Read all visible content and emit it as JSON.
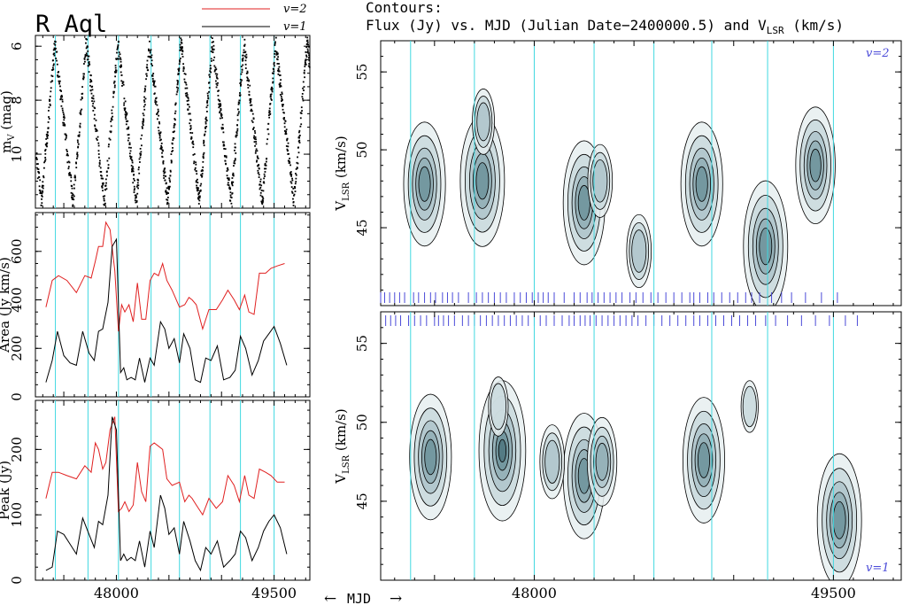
{
  "figure": {
    "star_title": "R Aql",
    "contour_title_line1": "Contours:",
    "contour_title_line2": "Flux (Jy) vs. MJD (Julian  Date−2400000.5) and V",
    "contour_title_sub": "LSR",
    "contour_title_unit": " (km/s)",
    "mjd_axis_label": "MJD",
    "arrow_left": "←",
    "arrow_right": "→"
  },
  "colors": {
    "v2": "#e02020",
    "v1": "#000000",
    "cyan": "#40d8e0",
    "tick_marks": "#4a4ad8",
    "contour_fill": "#5a7f88"
  },
  "chart_data": [
    {
      "type": "scatter",
      "id": "lightcurve",
      "ylabel": "m",
      "ylabel_sub": "V",
      "ylabel_unit": " (mag)",
      "xlim": [
        47230,
        49840
      ],
      "ylim": [
        12.0,
        5.6
      ],
      "xticks": [
        48000,
        49500
      ],
      "yticks": [
        6,
        8,
        10
      ],
      "legend": [
        {
          "name": "v=2",
          "color": "#e02020"
        },
        {
          "name": "v=1",
          "color": "#000000"
        }
      ],
      "maxima_mjd": [
        47415,
        47715,
        48015,
        48315,
        48615,
        48915,
        49215,
        49515,
        49815
      ],
      "amplitude_mag": [
        5.9,
        11.8
      ]
    },
    {
      "type": "line",
      "id": "area",
      "ylabel": "Area (Jy km/s)",
      "xlim": [
        47230,
        49840
      ],
      "ylim": [
        0,
        760
      ],
      "yticks": [
        0,
        200,
        400,
        600
      ],
      "series": [
        {
          "name": "v=2",
          "color": "#e02020",
          "x": [
            47330,
            47390,
            47450,
            47530,
            47620,
            47700,
            47760,
            47800,
            47830,
            47870,
            47900,
            47940,
            47985,
            48020,
            48050,
            48080,
            48120,
            48160,
            48200,
            48240,
            48280,
            48320,
            48360,
            48400,
            48440,
            48480,
            48530,
            48600,
            48650,
            48690,
            48720,
            48760,
            48820,
            48880,
            48950,
            49010,
            49060,
            49120,
            49170,
            49220,
            49260,
            49310,
            49360,
            49420,
            49470,
            49530,
            49600
          ],
          "y": [
            370,
            480,
            500,
            480,
            430,
            500,
            490,
            560,
            620,
            620,
            720,
            690,
            520,
            270,
            380,
            350,
            380,
            310,
            470,
            320,
            320,
            480,
            510,
            500,
            550,
            480,
            440,
            370,
            380,
            410,
            400,
            380,
            280,
            360,
            360,
            400,
            440,
            400,
            360,
            420,
            350,
            340,
            510,
            510,
            530,
            540,
            550
          ]
        },
        {
          "name": "v=1",
          "color": "#000000",
          "x": [
            47330,
            47390,
            47440,
            47500,
            47560,
            47620,
            47680,
            47740,
            47790,
            47830,
            47870,
            47920,
            47960,
            48000,
            48040,
            48070,
            48100,
            48140,
            48180,
            48220,
            48270,
            48320,
            48360,
            48420,
            48460,
            48500,
            48550,
            48600,
            48640,
            48700,
            48750,
            48800,
            48850,
            48900,
            48960,
            49020,
            49080,
            49130,
            49180,
            49230,
            49290,
            49350,
            49400,
            49450,
            49500,
            49560,
            49620
          ],
          "y": [
            60,
            150,
            270,
            170,
            140,
            130,
            270,
            180,
            150,
            270,
            280,
            390,
            620,
            650,
            100,
            120,
            70,
            80,
            70,
            160,
            60,
            160,
            130,
            310,
            280,
            200,
            240,
            140,
            260,
            200,
            70,
            60,
            160,
            150,
            210,
            70,
            80,
            110,
            250,
            200,
            90,
            150,
            230,
            260,
            290,
            220,
            130
          ]
        }
      ]
    },
    {
      "type": "line",
      "id": "peak",
      "ylabel": "Peak (Jy)",
      "xlim": [
        47230,
        49840
      ],
      "ylim": [
        0,
        275
      ],
      "yticks": [
        0,
        100,
        200
      ],
      "series": [
        {
          "name": "v=2",
          "color": "#e02020",
          "x": [
            47330,
            47390,
            47450,
            47530,
            47620,
            47700,
            47760,
            47800,
            47830,
            47870,
            47900,
            47940,
            47985,
            48020,
            48050,
            48080,
            48120,
            48160,
            48200,
            48240,
            48280,
            48320,
            48360,
            48400,
            48440,
            48480,
            48530,
            48600,
            48650,
            48690,
            48720,
            48760,
            48820,
            48880,
            48950,
            49010,
            49060,
            49120,
            49170,
            49220,
            49260,
            49310,
            49360,
            49420,
            49470,
            49530,
            49600
          ],
          "y": [
            125,
            165,
            165,
            160,
            155,
            175,
            165,
            210,
            200,
            170,
            180,
            230,
            250,
            105,
            110,
            120,
            105,
            115,
            180,
            135,
            120,
            205,
            210,
            205,
            200,
            155,
            145,
            150,
            120,
            130,
            125,
            115,
            100,
            125,
            110,
            120,
            160,
            145,
            120,
            160,
            130,
            125,
            170,
            165,
            160,
            150,
            150
          ]
        },
        {
          "name": "v=1",
          "color": "#000000",
          "x": [
            47330,
            47390,
            47440,
            47500,
            47560,
            47620,
            47680,
            47740,
            47790,
            47830,
            47870,
            47920,
            47960,
            48000,
            48040,
            48070,
            48100,
            48140,
            48180,
            48220,
            48270,
            48320,
            48360,
            48420,
            48460,
            48500,
            48550,
            48600,
            48640,
            48700,
            48750,
            48800,
            48850,
            48900,
            48960,
            49020,
            49080,
            49130,
            49180,
            49230,
            49290,
            49350,
            49400,
            49450,
            49500,
            49560,
            49620
          ],
          "y": [
            15,
            20,
            75,
            70,
            55,
            40,
            95,
            70,
            50,
            90,
            85,
            130,
            250,
            230,
            30,
            40,
            30,
            35,
            30,
            60,
            20,
            75,
            50,
            130,
            110,
            70,
            80,
            40,
            90,
            60,
            30,
            15,
            50,
            40,
            60,
            20,
            30,
            40,
            75,
            65,
            30,
            50,
            75,
            90,
            100,
            80,
            40
          ]
        }
      ]
    },
    {
      "type": "contour",
      "id": "contour_v2",
      "label": "v=2",
      "ylabel": "V",
      "ylabel_sub": "LSR",
      "ylabel_unit": " (km/s)",
      "xlim": [
        47230,
        49840
      ],
      "ylim": [
        40,
        57
      ],
      "xticks": [
        48000,
        49500
      ],
      "yticks": [
        45,
        50,
        55
      ],
      "components": [
        {
          "x": 47450,
          "y": 47.8,
          "peak": 0.85
        },
        {
          "x": 47740,
          "y": 48.0,
          "peak": 0.9
        },
        {
          "x": 48250,
          "y": 46.6,
          "peak": 0.85
        },
        {
          "x": 48330,
          "y": 48.0,
          "peak": 0.5
        },
        {
          "x": 48840,
          "y": 47.8,
          "peak": 0.85
        },
        {
          "x": 49160,
          "y": 43.8,
          "peak": 0.9
        },
        {
          "x": 49410,
          "y": 49.0,
          "peak": 0.8
        },
        {
          "x": 47745,
          "y": 51.8,
          "peak": 0.45
        },
        {
          "x": 48525,
          "y": 43.5,
          "peak": 0.5
        }
      ]
    },
    {
      "type": "contour",
      "id": "contour_v1",
      "label": "v=1",
      "ylabel": "V",
      "ylabel_sub": "LSR",
      "ylabel_unit": " (km/s)",
      "xlim": [
        47230,
        49840
      ],
      "ylim": [
        40,
        57
      ],
      "xticks": [
        48000,
        49500
      ],
      "yticks": [
        45,
        50,
        55
      ],
      "components": [
        {
          "x": 47480,
          "y": 47.8,
          "peak": 0.85
        },
        {
          "x": 47840,
          "y": 48.2,
          "peak": 0.95
        },
        {
          "x": 48250,
          "y": 46.6,
          "peak": 0.85
        },
        {
          "x": 48340,
          "y": 47.5,
          "peak": 0.6
        },
        {
          "x": 48850,
          "y": 47.6,
          "peak": 0.85
        },
        {
          "x": 49530,
          "y": 43.8,
          "peak": 0.9
        },
        {
          "x": 48090,
          "y": 47.5,
          "peak": 0.5
        },
        {
          "x": 47820,
          "y": 51.0,
          "peak": 0.4
        },
        {
          "x": 49080,
          "y": 51.0,
          "peak": 0.35
        }
      ]
    }
  ],
  "observation_epochs_v2_mjd": [
    47230,
    47250,
    47275,
    47300,
    47325,
    47350,
    47395,
    47420,
    47450,
    47480,
    47505,
    47540,
    47565,
    47590,
    47620,
    47670,
    47710,
    47740,
    47770,
    47800,
    47830,
    47860,
    47900,
    47930,
    47960,
    47990,
    48020,
    48045,
    48070,
    48100,
    48150,
    48200,
    48230,
    48265,
    48290,
    48320,
    48350,
    48380,
    48410,
    48440,
    48480,
    48510,
    48545,
    48585,
    48620,
    48660,
    48700,
    48740,
    48780,
    48800,
    48830,
    48870,
    48900,
    48940,
    48980,
    49020,
    49060,
    49090,
    49130,
    49190,
    49240,
    49290,
    49360,
    49440,
    49520
  ],
  "observation_epochs_v1_mjd": [
    47230,
    47255,
    47280,
    47305,
    47330,
    47370,
    47400,
    47430,
    47460,
    47500,
    47520,
    47545,
    47570,
    47600,
    47640,
    47670,
    47700,
    47730,
    47760,
    47790,
    47820,
    47850,
    47880,
    47910,
    47940,
    47970,
    48000,
    48030,
    48060,
    48100,
    48140,
    48175,
    48200,
    48230,
    48255,
    48280,
    48310,
    48340,
    48370,
    48400,
    48430,
    48460,
    48490,
    48520,
    48560,
    48600,
    48640,
    48680,
    48720,
    48760,
    48800,
    48830,
    48870,
    48910,
    48950,
    48990,
    49030,
    49070,
    49110,
    49160,
    49210,
    49270,
    49340,
    49410,
    49480,
    49560,
    49620
  ]
}
